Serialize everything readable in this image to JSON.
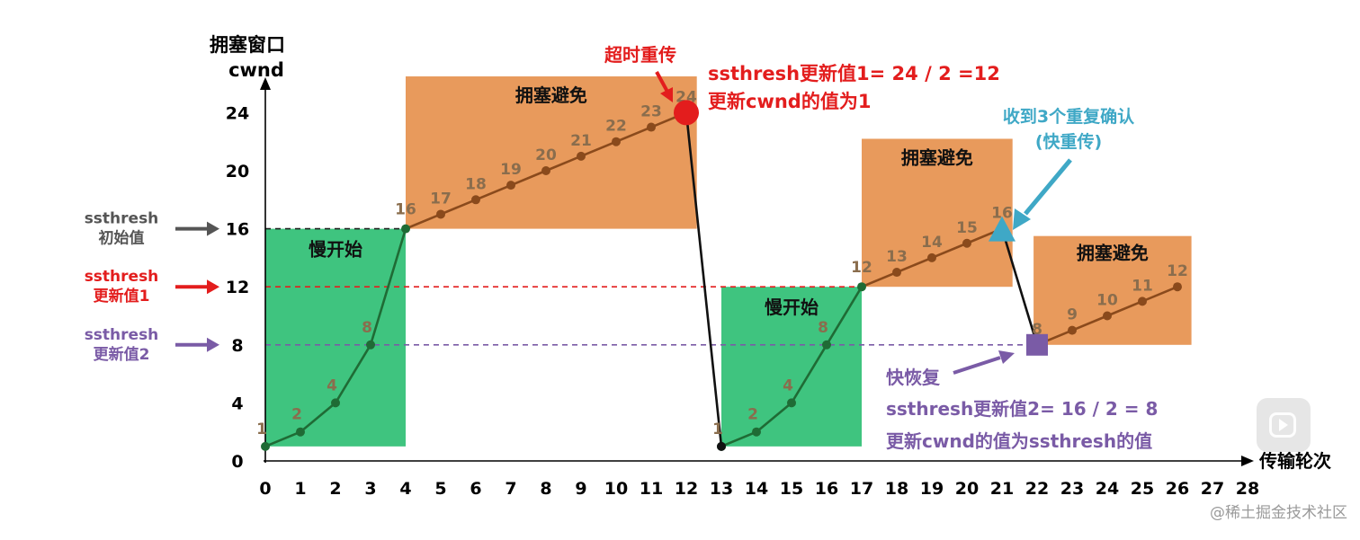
{
  "chart_data": {
    "type": "line",
    "ylabel_line1": "拥塞窗口",
    "ylabel_line2": "cwnd",
    "xlabel": "传输轮次",
    "x_ticks": [
      "0",
      "1",
      "2",
      "3",
      "4",
      "5",
      "6",
      "7",
      "8",
      "9",
      "10",
      "11",
      "12",
      "13",
      "14",
      "15",
      "16",
      "17",
      "18",
      "19",
      "20",
      "21",
      "22",
      "23",
      "24",
      "25",
      "26",
      "27",
      "28"
    ],
    "y_ticks": [
      "0",
      "4",
      "8",
      "12",
      "16",
      "20",
      "24"
    ],
    "xlim": [
      0,
      28
    ],
    "ylim": [
      0,
      24
    ],
    "series": [
      {
        "points": [
          [
            0,
            1
          ],
          [
            1,
            2
          ],
          [
            2,
            4
          ],
          [
            3,
            8
          ],
          [
            4,
            16
          ],
          [
            5,
            17
          ],
          [
            6,
            18
          ],
          [
            7,
            19
          ],
          [
            8,
            20
          ],
          [
            9,
            21
          ],
          [
            10,
            22
          ],
          [
            11,
            23
          ],
          [
            12,
            24
          ]
        ],
        "labels": [
          "1",
          "2",
          "4",
          "8",
          "16",
          "17",
          "18",
          "19",
          "20",
          "21",
          "22",
          "23",
          "24"
        ]
      },
      {
        "points": [
          [
            13,
            1
          ],
          [
            14,
            2
          ],
          [
            15,
            4
          ],
          [
            16,
            8
          ],
          [
            17,
            12
          ],
          [
            18,
            13
          ],
          [
            19,
            14
          ],
          [
            20,
            15
          ],
          [
            21,
            16
          ]
        ],
        "labels": [
          "1",
          "2",
          "4",
          "8",
          "12",
          "13",
          "14",
          "15",
          "16"
        ]
      },
      {
        "points": [
          [
            22,
            8
          ],
          [
            23,
            9
          ],
          [
            24,
            10
          ],
          [
            25,
            11
          ],
          [
            26,
            12
          ]
        ],
        "labels": [
          "8",
          "9",
          "10",
          "11",
          "12"
        ]
      }
    ],
    "drops": [
      {
        "from": [
          12,
          24
        ],
        "to": [
          13,
          1
        ]
      },
      {
        "from": [
          21,
          16
        ],
        "to": [
          22,
          8
        ]
      }
    ],
    "thresholds": [
      {
        "value": 16,
        "label1": "ssthresh",
        "label2": "初始值",
        "color": "#555555"
      },
      {
        "value": 12,
        "label1": "ssthresh",
        "label2": "更新值1",
        "color": "#e31d1d"
      },
      {
        "value": 8,
        "label1": "ssthresh",
        "label2": "更新值2",
        "color": "#7a5ba6"
      }
    ],
    "regions": [
      {
        "kind": "slow",
        "x0": 0,
        "x1": 4,
        "y0": 1,
        "y1": 16,
        "label": "慢开始",
        "color": "#3fc47f"
      },
      {
        "kind": "avoid",
        "x0": 4,
        "x1": 12.3,
        "y0": 16,
        "y1": 26.5,
        "label": "拥塞避免",
        "color": "#e89a5c"
      },
      {
        "kind": "slow",
        "x0": 13,
        "x1": 17,
        "y0": 1,
        "y1": 12,
        "label": "慢开始",
        "color": "#3fc47f"
      },
      {
        "kind": "avoid",
        "x0": 17,
        "x1": 21.3,
        "y0": 12,
        "y1": 22.2,
        "label": "拥塞避免",
        "color": "#e89a5c"
      },
      {
        "kind": "avoid",
        "x0": 21.9,
        "x1": 26.4,
        "y0": 8,
        "y1": 15.5,
        "label": "拥塞避免",
        "color": "#e89a5c"
      }
    ],
    "events": {
      "timeout": {
        "label": "超时重传",
        "color": "#e31d1d",
        "at": [
          12,
          24
        ]
      },
      "timeout_note": [
        "ssthresh更新值1= 24 / 2 =12",
        "更新cwnd的值为1"
      ],
      "dup_ack": {
        "label1": "收到3个重复确认",
        "label2": "(快重传)",
        "color": "#3fa8c6",
        "at": [
          21,
          16
        ]
      },
      "fast_recovery": {
        "label": "快恢复",
        "color": "#7a5ba6",
        "at": [
          22,
          8
        ]
      },
      "fast_recovery_note": [
        "ssthresh更新值2= 16 / 2 = 8",
        "更新cwnd的值为ssthresh的值"
      ]
    },
    "colors": {
      "line": "#1f6b35",
      "avoid_line": "#8a4a1c",
      "axis": "#000000"
    }
  },
  "watermark": "@稀土掘金技术社区"
}
